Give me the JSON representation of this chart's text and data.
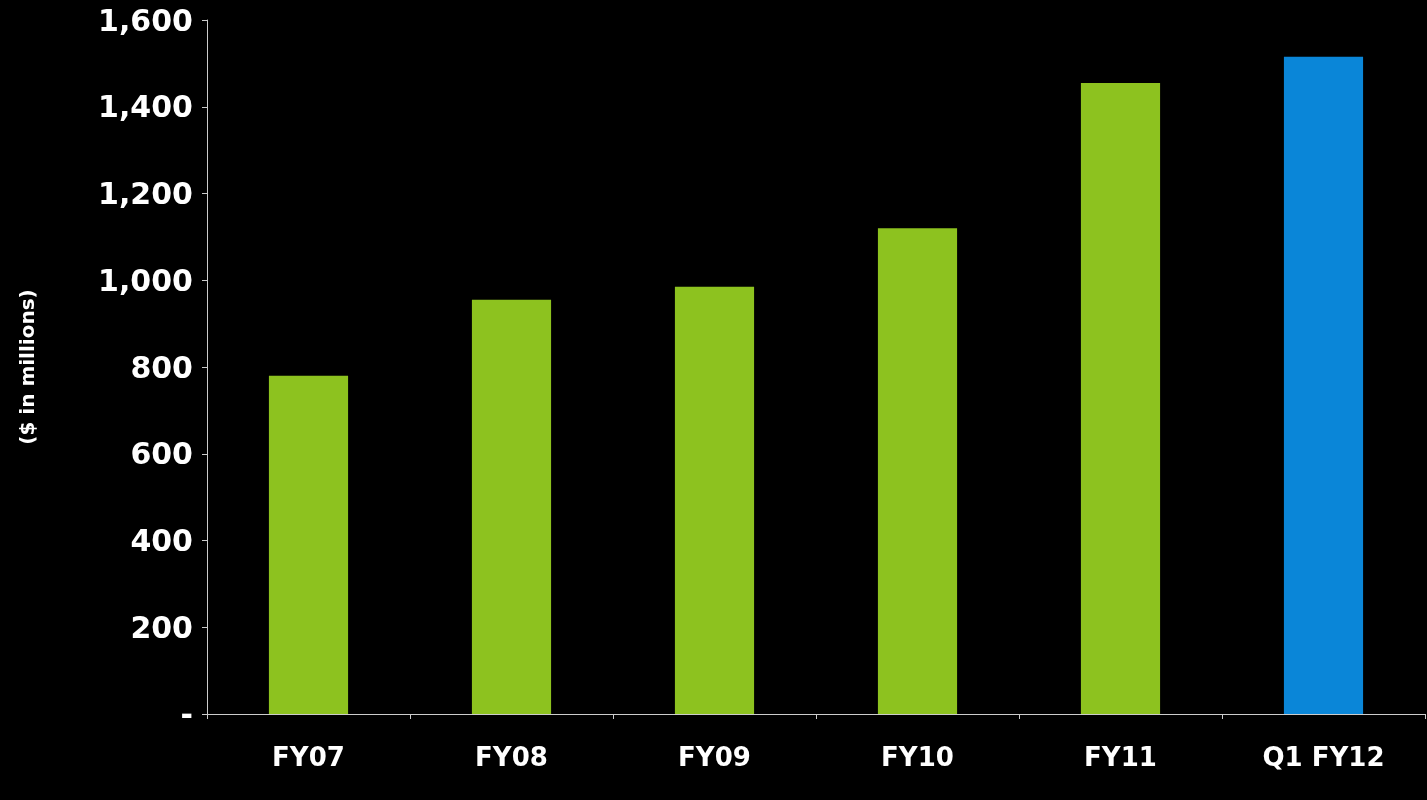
{
  "chart_data": {
    "type": "bar",
    "ylabel": "($ in millions)",
    "categories": [
      "FY07",
      "FY08",
      "FY09",
      "FY10",
      "FY11",
      "Q1 FY12"
    ],
    "values": [
      780,
      955,
      985,
      1120,
      1455,
      1515
    ],
    "colors": [
      "#8dc21f",
      "#8dc21f",
      "#8dc21f",
      "#8dc21f",
      "#8dc21f",
      "#0a86d8"
    ],
    "ylim": [
      0,
      1600
    ],
    "yticks": [
      {
        "value": 0,
        "label": "-"
      },
      {
        "value": 200,
        "label": "200"
      },
      {
        "value": 400,
        "label": "400"
      },
      {
        "value": 600,
        "label": "600"
      },
      {
        "value": 800,
        "label": "800"
      },
      {
        "value": 1000,
        "label": "1,000"
      },
      {
        "value": 1200,
        "label": "1,200"
      },
      {
        "value": 1400,
        "label": "1,400"
      },
      {
        "value": 1600,
        "label": "1,600"
      }
    ],
    "grid": false
  }
}
